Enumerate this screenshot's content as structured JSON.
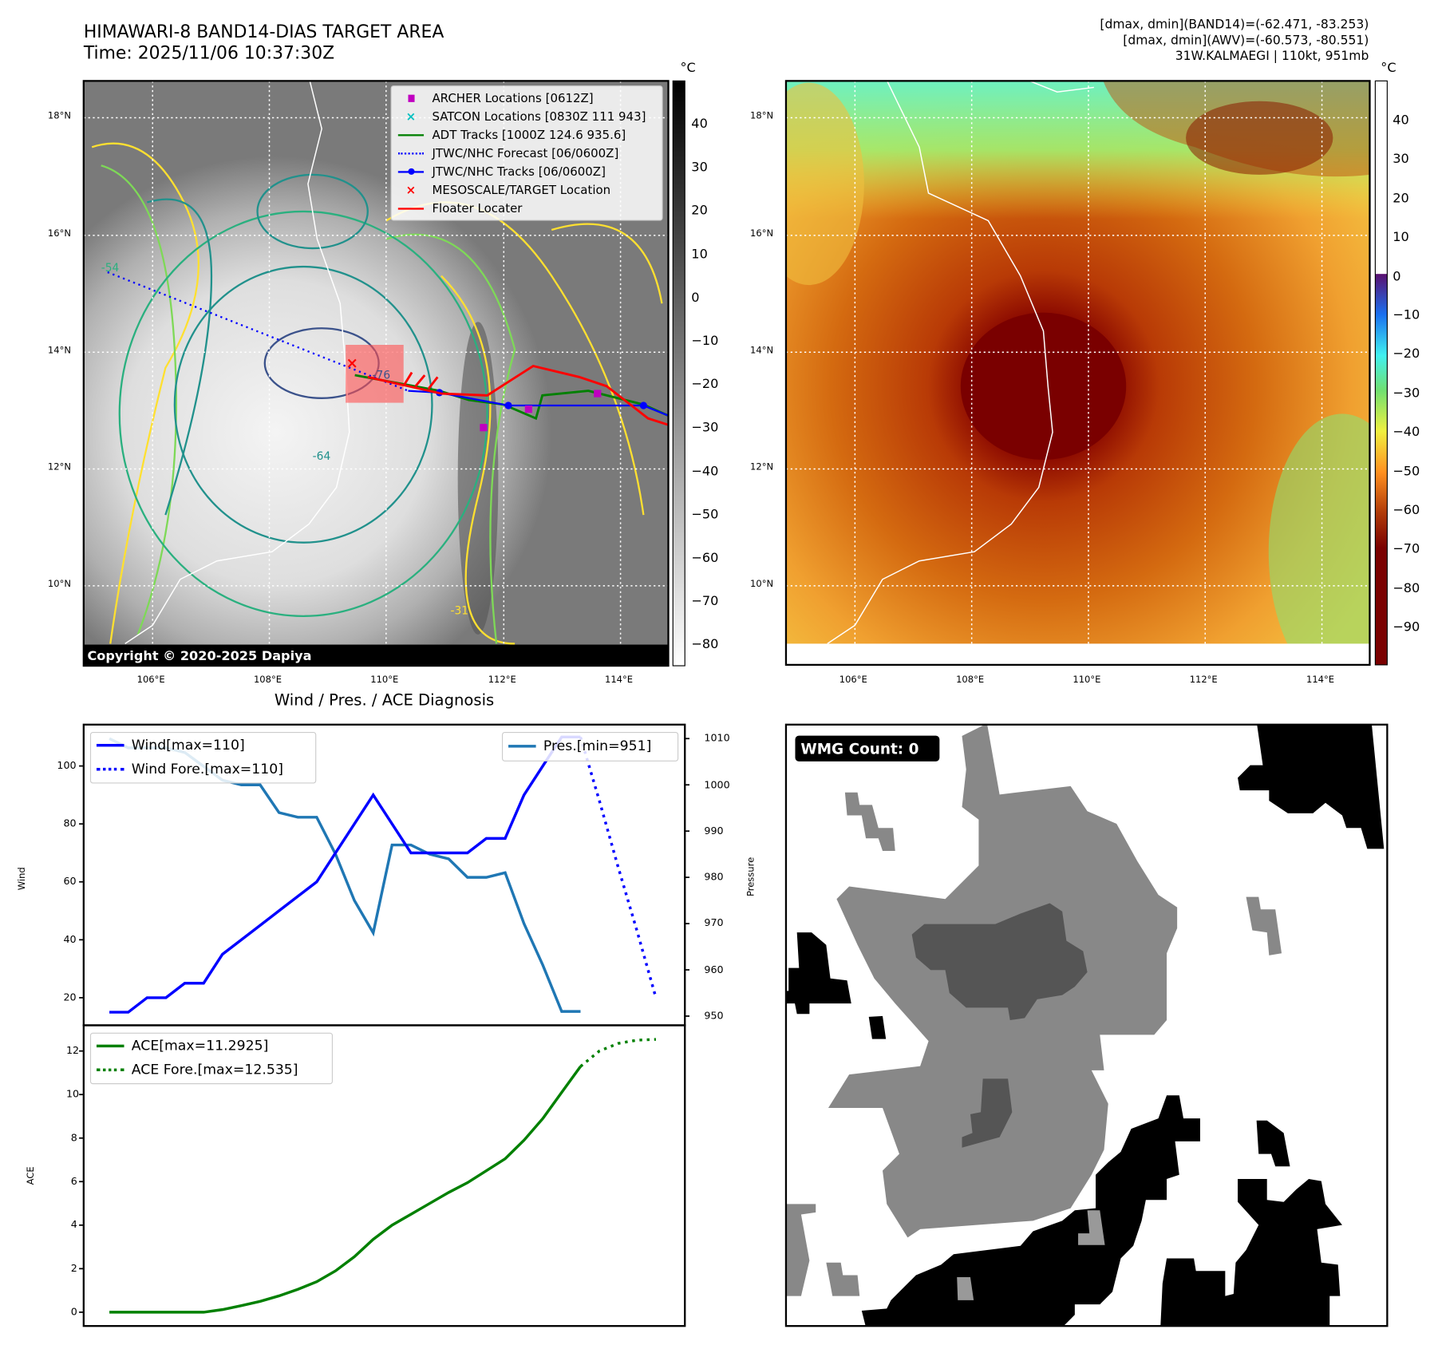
{
  "header": {
    "title_line1": "HIMAWARI-8 BAND14-DIAS TARGET AREA",
    "title_line2": "Time: 2025/11/06 10:37:30Z",
    "info_line1": "[dmax, dmin](BAND14)=(-62.471, -83.253)",
    "info_line2": "[dmax, dmin](AWV)=(-60.573, -80.551)",
    "info_line3": "31W.KALMAEGI | 110kt, 951mb"
  },
  "maps": {
    "lat_labels": [
      "18°N",
      "16°N",
      "14°N",
      "12°N",
      "10°N"
    ],
    "lon_labels": [
      "106°E",
      "108°E",
      "110°E",
      "112°E",
      "114°E"
    ],
    "copyright": "Copyright © 2020-2025 Dapiya",
    "left_colorbar": {
      "unit": "°C",
      "ticks": [
        "40",
        "30",
        "20",
        "10",
        "0",
        "−10",
        "−20",
        "−30",
        "−40",
        "−50",
        "−60",
        "−70",
        "−80"
      ]
    },
    "right_colorbar": {
      "unit": "°C",
      "ticks": [
        "40",
        "30",
        "20",
        "10",
        "0",
        "−10",
        "−20",
        "−30",
        "−40",
        "−50",
        "−60",
        "−70",
        "−80",
        "−90"
      ]
    },
    "contour_labels": [
      "-54",
      "-64",
      "-31",
      "-76"
    ],
    "legend": [
      {
        "label": "ARCHER Locations [0612Z]",
        "color": "#c000c0"
      },
      {
        "label": "SATCON Locations [0830Z 111 943]",
        "color": "#00c0c0"
      },
      {
        "label": "ADT Tracks [1000Z 124.6 935.6]",
        "color": "#008000"
      },
      {
        "label": "JTWC/NHC Forecast [06/0600Z]",
        "color": "#0000ff"
      },
      {
        "label": "JTWC/NHC Tracks [06/0600Z]",
        "color": "#0000ff"
      },
      {
        "label": "MESOSCALE/TARGET Location",
        "color": "#ff0000"
      },
      {
        "label": "Floater Locater",
        "color": "#ff0000"
      }
    ]
  },
  "wmg": {
    "label": "WMG Count: 0"
  },
  "chart_data": [
    {
      "type": "line",
      "title": "Wind / Pres. / ACE Diagnosis",
      "ylabel": "Wind",
      "y2label": "Pressure",
      "ylim": [
        10,
        115
      ],
      "y2lim": [
        948,
        1012
      ],
      "yticks": [
        "20",
        "40",
        "60",
        "80",
        "100"
      ],
      "y2ticks": [
        "950",
        "960",
        "970",
        "980",
        "990",
        "1000",
        "1010"
      ],
      "x": [
        0,
        1,
        2,
        3,
        4,
        5,
        6,
        7,
        8,
        9,
        10,
        11,
        12,
        13,
        14,
        15,
        16,
        17,
        18,
        19,
        20,
        21,
        22,
        23,
        24,
        25
      ],
      "series": [
        {
          "name": "Wind[max=110]",
          "color": "#0000ff",
          "style": "solid",
          "values": [
            15,
            15,
            20,
            20,
            25,
            25,
            35,
            40,
            45,
            50,
            55,
            60,
            70,
            80,
            90,
            80,
            70,
            70,
            70,
            70,
            75,
            75,
            90,
            100,
            110,
            110
          ]
        },
        {
          "name": "Wind Fore.[max=110]",
          "color": "#0000ff",
          "style": "dotted",
          "x": [
            25,
            26,
            27,
            28,
            29
          ],
          "values": [
            110,
            88,
            65,
            43,
            20
          ]
        },
        {
          "name": "Pres.[min=951]",
          "color": "#1f77b4",
          "style": "solid",
          "axis": "right",
          "values": [
            1010,
            1008,
            1008,
            1008,
            1007,
            1004,
            1001,
            1000,
            1000,
            994,
            993,
            993,
            985,
            975,
            968,
            987,
            987,
            985,
            984,
            980,
            980,
            981,
            970,
            961,
            951,
            951
          ]
        }
      ]
    },
    {
      "type": "line",
      "ylabel": "ACE",
      "ylim": [
        -1.2,
        13.3
      ],
      "yticks": [
        "0",
        "2",
        "4",
        "6",
        "8",
        "10",
        "12"
      ],
      "series": [
        {
          "name": "ACE[max=11.2925]",
          "color": "#008000",
          "style": "solid",
          "values": [
            0,
            0,
            0,
            0,
            0,
            0,
            0.12,
            0.3,
            0.5,
            0.75,
            1.05,
            1.4,
            1.9,
            2.55,
            3.35,
            4.0,
            4.5,
            5.0,
            5.5,
            5.95,
            6.5,
            7.05,
            7.9,
            8.9,
            10.1,
            11.2925
          ]
        },
        {
          "name": "ACE Fore.[max=12.535]",
          "color": "#008000",
          "style": "dotted",
          "x": [
            25,
            26,
            27,
            28,
            29
          ],
          "values": [
            11.2925,
            12.0,
            12.35,
            12.5,
            12.535
          ]
        }
      ]
    }
  ]
}
